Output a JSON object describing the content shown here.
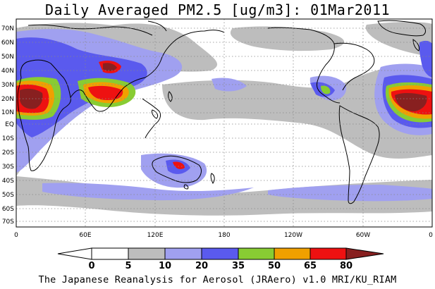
{
  "title": "Daily Averaged PM2.5 [ug/m3]: 01Mar2011",
  "footer": "The Japanese Reanalysis for Aerosol (JRAero) v1.0 MRI/KU_RIAM",
  "lat_labels": [
    "70N",
    "60N",
    "50N",
    "40N",
    "30N",
    "20N",
    "10N",
    "EQ",
    "10S",
    "20S",
    "30S",
    "40S",
    "50S",
    "60S",
    "70S"
  ],
  "lon_labels": [
    "0",
    "60E",
    "120E",
    "180",
    "120W",
    "60W",
    "0"
  ],
  "colorbar": {
    "ticks": [
      "0",
      "5",
      "10",
      "20",
      "35",
      "50",
      "65",
      "80"
    ],
    "colors": [
      "#ffffff",
      "#bdbdbd",
      "#a0a0f0",
      "#5a5aee",
      "#88cc33",
      "#f0a000",
      "#ee1111",
      "#882020"
    ]
  }
}
